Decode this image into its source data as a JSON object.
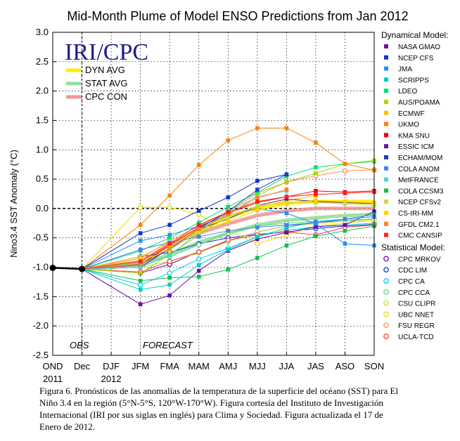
{
  "chart_data": {
    "type": "line",
    "title": "Mid-Month Plume of Model ENSO Predictions from Jan 2012",
    "ylabel": "Nino3.4 SST Anomaly (°C)",
    "ylim": [
      -2.5,
      3.0
    ],
    "yticks": [
      "3.0",
      "2.5",
      "2.0",
      "1.5",
      "1.0",
      "0.5",
      "0.0",
      "-0.5",
      "-1.0",
      "-1.5",
      "-2.0",
      "-2.5"
    ],
    "ytick_values": [
      3.0,
      2.5,
      2.0,
      1.5,
      1.0,
      0.5,
      0.0,
      -0.5,
      -1.0,
      -1.5,
      -2.0,
      -2.5
    ],
    "categories": [
      "OND",
      "Dec",
      "DJF",
      "JFM",
      "FMA",
      "MAM",
      "AMJ",
      "MJJ",
      "JJA",
      "JAS",
      "ASO",
      "SON"
    ],
    "year_labels": [
      {
        "text": "2011",
        "at": "OND"
      },
      {
        "text": "2012",
        "at": "DJF"
      }
    ],
    "grid": true,
    "annotations": {
      "obs": "OBS",
      "forecast": "FORECAST",
      "logo": "IRI/CPC"
    },
    "observed": [
      -1.01,
      -1.03
    ],
    "averages": [
      {
        "name": "DYN AVG",
        "color": "#ffee00",
        "values": [
          -0.92,
          -0.62,
          -0.36,
          -0.15,
          0.01,
          0.09,
          0.12,
          0.12,
          0.12
        ]
      },
      {
        "name": "STAT AVG",
        "color": "#99dd99",
        "values": [
          -0.97,
          -0.78,
          -0.58,
          -0.42,
          -0.28,
          -0.2,
          -0.16,
          -0.12,
          -0.1
        ]
      },
      {
        "name": "CPC CON",
        "color": "#ee9999",
        "values": [
          -0.91,
          -0.62,
          -0.42,
          -0.26,
          -0.12,
          -0.04,
          0.0,
          0.0,
          0.0
        ]
      }
    ],
    "dynamical_title": "Dynamical Model:",
    "statistical_title": "Statistical Model:",
    "dynamical": [
      {
        "name": "NASA GMAO",
        "color": "#6a0dad",
        "values": [
          -1.63,
          -1.48,
          -1.06,
          -0.72,
          -0.52,
          -0.41,
          -0.31,
          -0.28,
          -0.05
        ]
      },
      {
        "name": "NCEP CFS",
        "color": "#1030e0",
        "values": [
          -0.42,
          -0.28,
          -0.04,
          0.19,
          0.47,
          0.58,
          null,
          null,
          null
        ]
      },
      {
        "name": "JMA",
        "color": "#1e90ff",
        "values": [
          -0.55,
          -0.45,
          -0.3,
          -0.12,
          0.0,
          -0.08,
          -0.26,
          -0.6,
          -0.63
        ]
      },
      {
        "name": "SCRIPPS",
        "color": "#00d0c0",
        "values": [
          -1.38,
          -1.3,
          -0.96,
          -0.7,
          -0.48,
          -0.33,
          -0.22,
          -0.18,
          -0.1
        ]
      },
      {
        "name": "LDEO",
        "color": "#00e070",
        "values": [
          -0.72,
          -0.5,
          -0.24,
          0.03,
          0.27,
          0.55,
          0.7,
          0.76,
          0.8
        ]
      },
      {
        "name": "AUS/POAMA",
        "color": "#a8d800",
        "values": [
          -1.1,
          -0.78,
          -0.45,
          -0.12,
          0.22,
          0.45,
          0.6,
          0.76,
          0.82
        ]
      },
      {
        "name": "ECMWF",
        "color": "#ffc000",
        "values": [
          -0.82,
          -0.58,
          -0.35,
          -0.12,
          0.02,
          0.13,
          0.22,
          null,
          null
        ]
      },
      {
        "name": "UKMO",
        "color": "#ff7f00",
        "values": [
          -0.28,
          0.22,
          0.74,
          1.16,
          1.37,
          1.37,
          1.12,
          0.76,
          0.65
        ]
      },
      {
        "name": "KMA SNU",
        "color": "#ee0000",
        "values": [
          -0.96,
          -0.62,
          -0.32,
          -0.08,
          0.1,
          0.2,
          0.3,
          0.28,
          0.3
        ]
      },
      {
        "name": "ESSIC ICM",
        "color": "#5c1f8f",
        "values": [
          -1.0,
          -0.68,
          -0.35,
          -0.18,
          0.05,
          0.16,
          0.12,
          0.1,
          0.08
        ]
      },
      {
        "name": "ECHAM/MOM",
        "color": "#1f3fbf",
        "values": [
          -0.95,
          -0.7,
          -0.34,
          -0.05,
          0.32,
          0.58,
          null,
          null,
          null
        ]
      },
      {
        "name": "COLA ANOM",
        "color": "#4080ff",
        "values": [
          -0.7,
          -0.58,
          -0.48,
          -0.38,
          -0.32,
          -0.28,
          -0.24,
          -0.18,
          -0.14
        ]
      },
      {
        "name": "MetFRANCE",
        "color": "#40d8d8",
        "values": [
          -1.0,
          -0.8,
          -0.4,
          -0.05,
          0.2,
          0.3,
          null,
          null,
          null
        ]
      },
      {
        "name": "COLA CCSM3",
        "color": "#10c050",
        "values": [
          -1.23,
          -1.18,
          -1.16,
          -1.04,
          -0.84,
          -0.63,
          -0.47,
          -0.38,
          -0.3
        ]
      },
      {
        "name": "NCEP CFSv2",
        "color": "#c0e040",
        "values": [
          -0.9,
          -0.7,
          -0.4,
          -0.16,
          0.05,
          0.1,
          0.1,
          0.08,
          0.05
        ]
      },
      {
        "name": "CS-IRI-MM",
        "color": "#ffd000",
        "values": [
          -0.88,
          -0.62,
          -0.4,
          -0.22,
          -0.03,
          0.08,
          0.14,
          0.12,
          0.1
        ]
      },
      {
        "name": "GFDL CM2.1",
        "color": "#ff8030",
        "values": [
          -0.95,
          -0.68,
          -0.35,
          -0.1,
          0.18,
          0.32,
          null,
          null,
          null
        ]
      },
      {
        "name": "CMC CANSIP",
        "color": "#ff2020",
        "values": [
          -0.9,
          -0.6,
          -0.28,
          -0.06,
          0.12,
          0.2,
          0.24,
          0.26,
          0.28
        ]
      }
    ],
    "statistical": [
      {
        "name": "CPC MRKOV",
        "color": "#6a0dad",
        "values": [
          -1.1,
          -0.95,
          -0.74,
          -0.55,
          -0.4,
          -0.3,
          -0.24,
          -0.2,
          -0.18
        ]
      },
      {
        "name": "CDC LIM",
        "color": "#1030e0",
        "values": [
          -0.82,
          -0.75,
          -0.6,
          -0.5,
          -0.44,
          -0.4,
          -0.34,
          -0.3,
          -0.27
        ]
      },
      {
        "name": "CPC CA",
        "color": "#00d0f0",
        "values": [
          -1.3,
          -1.1,
          -0.86,
          -0.68,
          -0.48,
          -0.37,
          -0.31,
          -0.28,
          -0.25
        ]
      },
      {
        "name": "CPC CCA",
        "color": "#50e080",
        "values": [
          -0.92,
          -0.82,
          -0.62,
          -0.42,
          -0.3,
          -0.25,
          -0.22,
          -0.2,
          -0.18
        ]
      },
      {
        "name": "CSU CLIPR",
        "color": "#c0e040",
        "values": [
          -1.0,
          -0.9,
          -0.76,
          -0.56,
          -0.4,
          -0.3,
          -0.26,
          -0.22,
          -0.2
        ]
      },
      {
        "name": "UBC NNET",
        "color": "#e8e000",
        "values": [
          0.02,
          0.02,
          -0.1,
          -0.38,
          -0.6,
          -0.45,
          -0.3,
          -0.25,
          -0.2
        ]
      },
      {
        "name": "FSU REGR",
        "color": "#ff9050",
        "values": [
          -0.85,
          -0.55,
          -0.3,
          -0.05,
          0.26,
          0.45,
          0.56,
          0.64,
          0.66
        ]
      },
      {
        "name": "UCLA-TCD",
        "color": "#ff4040",
        "values": [
          -1.08,
          -0.9,
          -0.74,
          -0.54,
          -0.45,
          -0.4,
          -0.45,
          -0.32,
          -0.28
        ]
      }
    ]
  },
  "caption": {
    "lines": [
      "Figura 6. Pronósticos de las anomalías de la temperatura de la superficie del océano (SST) para El",
      "Niño 3.4 en la región (5°N-5°S, 120°W-170°W). Figura cortesía del Instituto de Investigación",
      "Internacional (IRI por sus siglas en inglés) para Clima y Sociedad. Figura actualizada el 17 de",
      "Enero de 2012."
    ]
  }
}
